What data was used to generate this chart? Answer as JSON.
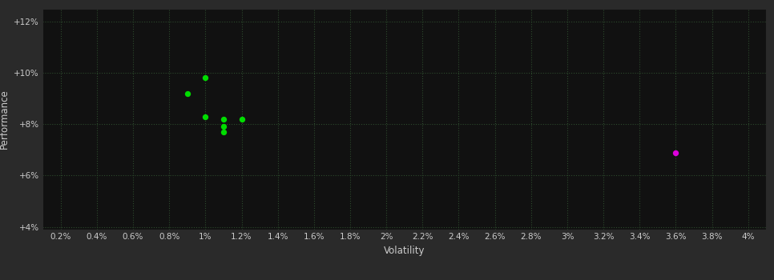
{
  "background_color": "#2a2a2a",
  "plot_bg_color": "#111111",
  "grid_color": "#2d4a2d",
  "grid_linestyle": ":",
  "xlabel": "Volatility",
  "ylabel": "Performance",
  "xlabel_color": "#cccccc",
  "ylabel_color": "#cccccc",
  "tick_color": "#cccccc",
  "xlim": [
    0.001,
    0.041
  ],
  "ylim": [
    0.039,
    0.125
  ],
  "xticks": [
    0.002,
    0.004,
    0.006,
    0.008,
    0.01,
    0.012,
    0.014,
    0.016,
    0.018,
    0.02,
    0.022,
    0.024,
    0.026,
    0.028,
    0.03,
    0.032,
    0.034,
    0.036,
    0.038,
    0.04
  ],
  "xtick_labels": [
    "0.2%",
    "0.4%",
    "0.6%",
    "0.8%",
    "1%",
    "1.2%",
    "1.4%",
    "1.6%",
    "1.8%",
    "2%",
    "2.2%",
    "2.4%",
    "2.6%",
    "2.8%",
    "3%",
    "3.2%",
    "3.4%",
    "3.6%",
    "3.8%",
    "4%"
  ],
  "yticks": [
    0.04,
    0.06,
    0.08,
    0.1,
    0.12
  ],
  "ytick_labels": [
    "+4%",
    "+6%",
    "+8%",
    "+10%",
    "+12%"
  ],
  "green_points": [
    [
      0.01,
      0.098
    ],
    [
      0.009,
      0.092
    ],
    [
      0.01,
      0.083
    ],
    [
      0.011,
      0.082
    ],
    [
      0.012,
      0.082
    ],
    [
      0.011,
      0.079
    ],
    [
      0.011,
      0.077
    ]
  ],
  "magenta_points": [
    [
      0.036,
      0.069
    ]
  ],
  "green_color": "#00dd00",
  "magenta_color": "#dd00dd",
  "marker_size": 28,
  "tick_fontsize": 7.5,
  "label_fontsize": 8.5
}
